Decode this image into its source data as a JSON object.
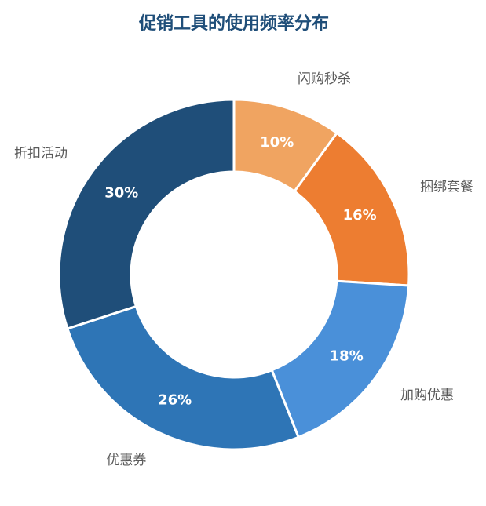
{
  "chart_data": {
    "type": "pie",
    "variant": "donut",
    "title": "促销工具的使用频率分布",
    "categories": [
      "闪购秒杀",
      "捆绑套餐",
      "加购优惠",
      "优惠券",
      "折扣活动"
    ],
    "values": [
      10,
      16,
      18,
      26,
      30
    ],
    "value_labels": [
      "10%",
      "16%",
      "18%",
      "26%",
      "30%"
    ],
    "unit": "%",
    "colors": [
      "#f0a461",
      "#ed7d31",
      "#4a90d9",
      "#2e75b6",
      "#1f4e79"
    ],
    "start_direction": "top",
    "order": "clockwise",
    "legend": "none"
  }
}
